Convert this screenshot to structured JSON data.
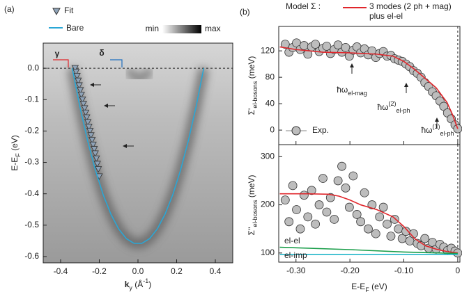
{
  "chart_data": [
    {
      "type": "scatter",
      "panel_label": "(a)",
      "xlabel": [
        {
          "b": "k"
        },
        {
          "sub": "y"
        },
        {
          "text": " (Å"
        },
        {
          "sup": "-1"
        },
        {
          "text": ")"
        }
      ],
      "ylabel": [
        {
          "text": "E-E"
        },
        {
          "sub": "F"
        },
        {
          "text": " (eV)"
        }
      ],
      "colorbar_labels": [
        "min",
        "max"
      ],
      "hline": 0,
      "annotations": [
        {
          "text": "γ",
          "color": "#e0262b"
        },
        {
          "text": "δ",
          "color": "#1f6fbf"
        }
      ],
      "xlim": [
        -0.49,
        0.49
      ],
      "ylim": [
        -0.62,
        0.08
      ],
      "xticks": [
        -0.4,
        -0.2,
        {
          "value": 0,
          "label": "0.0"
        },
        0.2,
        0.4
      ],
      "yticks": [
        {
          "value": 0,
          "label": "0.0"
        },
        -0.1,
        -0.2,
        -0.3,
        -0.4,
        -0.5,
        -0.6
      ],
      "series": [
        {
          "name": "Fit",
          "style": "markers",
          "marker": "triangle",
          "color": "#8fa3b8",
          "x": [
            -0.325,
            -0.32,
            -0.315,
            -0.309,
            -0.304,
            -0.298,
            -0.293,
            -0.287,
            -0.282,
            -0.276,
            -0.27,
            -0.265,
            -0.259,
            -0.254,
            -0.248,
            -0.243,
            -0.237,
            -0.232,
            -0.226,
            -0.221,
            -0.215,
            -0.21,
            -0.205,
            -0.2
          ],
          "values": [
            0,
            -0.012,
            -0.025,
            -0.04,
            -0.055,
            -0.07,
            -0.085,
            -0.1,
            -0.114,
            -0.128,
            -0.142,
            -0.157,
            -0.172,
            -0.187,
            -0.2,
            -0.214,
            -0.229,
            -0.244,
            -0.258,
            -0.272,
            -0.288,
            -0.305,
            -0.322,
            -0.345
          ]
        },
        {
          "name": "Bare",
          "style": "line",
          "color": "#2aa7d6",
          "x": [
            -0.34,
            -0.3,
            -0.26,
            -0.22,
            -0.18,
            -0.14,
            -0.1,
            -0.06,
            -0.02,
            0.02,
            0.06,
            0.1,
            0.14,
            0.18,
            0.22,
            0.26,
            0.3,
            0.34
          ],
          "values": [
            0,
            -0.124,
            -0.232,
            -0.325,
            -0.403,
            -0.465,
            -0.512,
            -0.543,
            -0.558,
            -0.558,
            -0.543,
            -0.512,
            -0.465,
            -0.403,
            -0.325,
            -0.232,
            -0.124,
            0
          ]
        }
      ]
    },
    {
      "type": "scatter",
      "panel_label": "(b)",
      "legend_title": "Model Σ :",
      "ylabel": [
        {
          "text": "Σ'"
        },
        {
          "sub": "el-bosons"
        },
        {
          "text": " (meV)"
        }
      ],
      "vline": 0,
      "annotations": [
        [
          {
            "text": "ħω"
          },
          {
            "sub": "el-mag"
          }
        ],
        [
          {
            "text": "ħω"
          },
          {
            "sup": "(2)"
          },
          {
            "sub": "el-ph"
          }
        ],
        [
          {
            "text": "ħω"
          },
          {
            "sup": "(1)"
          },
          {
            "sub": "el-ph"
          }
        ]
      ],
      "xlim": [
        -0.332,
        0.004
      ],
      "ylim": [
        -22,
        157
      ],
      "yticks": [
        0,
        40,
        80,
        120
      ],
      "series": [
        {
          "name": "Exp.",
          "style": "markers",
          "marker": "circle",
          "color": "#bdbdbd",
          "x": [
            -0.32,
            -0.313,
            -0.306,
            -0.299,
            -0.292,
            -0.285,
            -0.278,
            -0.271,
            -0.264,
            -0.257,
            -0.25,
            -0.243,
            -0.236,
            -0.229,
            -0.222,
            -0.215,
            -0.208,
            -0.201,
            -0.194,
            -0.187,
            -0.18,
            -0.173,
            -0.166,
            -0.159,
            -0.152,
            -0.145,
            -0.138,
            -0.131,
            -0.124,
            -0.117,
            -0.11,
            -0.103,
            -0.096,
            -0.089,
            -0.082,
            -0.075,
            -0.068,
            -0.061,
            -0.054,
            -0.047,
            -0.04,
            -0.033,
            -0.026,
            -0.019,
            -0.012,
            -0.005,
            0
          ],
          "values": [
            130,
            118,
            125,
            132,
            122,
            128,
            115,
            126,
            130,
            119,
            124,
            127,
            116,
            122,
            129,
            118,
            125,
            112,
            121,
            126,
            117,
            123,
            114,
            120,
            110,
            116,
            119,
            112,
            113,
            108,
            106,
            104,
            100,
            96,
            90,
            86,
            80,
            72,
            66,
            58,
            52,
            44,
            36,
            26,
            17,
            8,
            2
          ]
        },
        {
          "name": "3 modes (2 ph + mag) plus el-el",
          "style": "line",
          "color": "#e0262b",
          "x": [
            -0.33,
            -0.3,
            -0.25,
            -0.2,
            -0.15,
            -0.12,
            -0.1,
            -0.08,
            -0.06,
            -0.04,
            -0.02,
            -0.01,
            0
          ],
          "values": [
            126,
            122,
            118,
            117,
            115,
            112,
            104,
            92,
            78,
            64,
            42,
            24,
            2
          ]
        }
      ]
    },
    {
      "type": "scatter",
      "xlabel": [
        {
          "text": "E-E"
        },
        {
          "sub": "F"
        },
        {
          "text": " (eV)"
        }
      ],
      "ylabel": [
        {
          "text": "Σ''"
        },
        {
          "sub": "el-bosons"
        },
        {
          "text": " (meV)"
        }
      ],
      "vline": 0,
      "xlim": [
        -0.332,
        0.004
      ],
      "ylim": [
        81,
        325
      ],
      "xticks": [
        {
          "value": -0.3,
          "label": "-0.30"
        },
        {
          "value": -0.2,
          "label": "-0.20"
        },
        {
          "value": -0.1,
          "label": "-0.10"
        },
        0
      ],
      "yticks": [
        100,
        200,
        300
      ],
      "series": [
        {
          "style": "markers",
          "marker": "circle",
          "color": "#bdbdbd",
          "x": [
            -0.32,
            -0.313,
            -0.306,
            -0.299,
            -0.292,
            -0.285,
            -0.278,
            -0.271,
            -0.264,
            -0.257,
            -0.25,
            -0.243,
            -0.236,
            -0.229,
            -0.222,
            -0.215,
            -0.208,
            -0.201,
            -0.194,
            -0.187,
            -0.18,
            -0.173,
            -0.166,
            -0.159,
            -0.152,
            -0.145,
            -0.138,
            -0.131,
            -0.124,
            -0.117,
            -0.11,
            -0.103,
            -0.096,
            -0.089,
            -0.082,
            -0.075,
            -0.068,
            -0.061,
            -0.054,
            -0.047,
            -0.04,
            -0.033,
            -0.026,
            -0.019,
            -0.012,
            -0.005,
            0
          ],
          "values": [
            210,
            165,
            240,
            190,
            150,
            220,
            175,
            230,
            160,
            200,
            255,
            185,
            215,
            170,
            250,
            280,
            235,
            195,
            260,
            180,
            165,
            225,
            150,
            200,
            140,
            175,
            195,
            160,
            135,
            170,
            150,
            130,
            145,
            125,
            140,
            120,
            115,
            130,
            110,
            122,
            108,
            118,
            112,
            105,
            110,
            104,
            100
          ]
        },
        {
          "style": "line",
          "color": "#e0262b",
          "x": [
            -0.33,
            -0.28,
            -0.24,
            -0.22,
            -0.2,
            -0.18,
            -0.15,
            -0.12,
            -0.1,
            -0.08,
            -0.06,
            -0.04,
            -0.02,
            0
          ],
          "values": [
            223,
            223,
            222,
            218,
            210,
            200,
            190,
            175,
            155,
            130,
            115,
            108,
            103,
            100
          ]
        },
        {
          "name": "el-el",
          "style": "line",
          "color": "#1a9e4a",
          "x": [
            -0.33,
            -0.2,
            -0.1,
            0
          ],
          "values": [
            112,
            107,
            102,
            99
          ]
        },
        {
          "name": "el-imp",
          "style": "line",
          "color": "#1fb5c9",
          "x": [
            -0.33,
            0
          ],
          "values": [
            97,
            97
          ]
        }
      ]
    }
  ]
}
